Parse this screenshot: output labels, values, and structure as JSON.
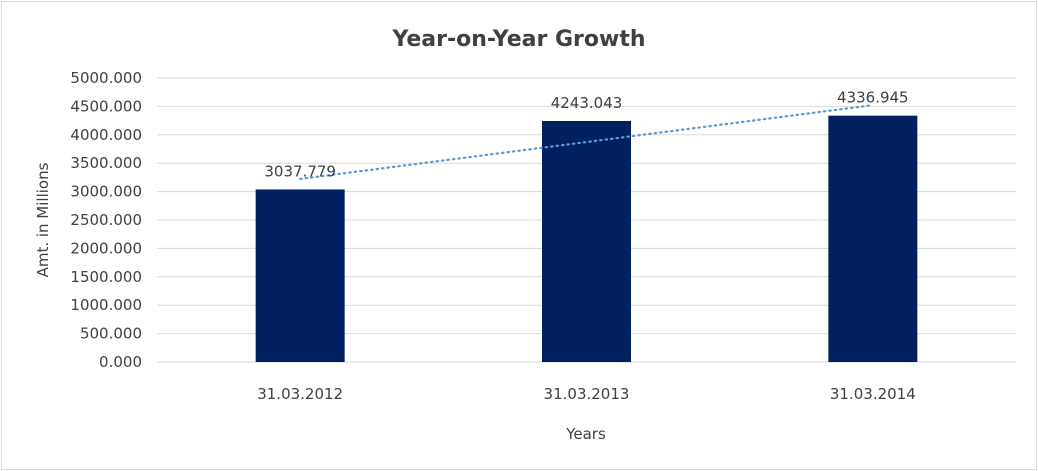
{
  "chart_data": {
    "type": "bar",
    "title": "Year-on-Year Growth",
    "xlabel": "Years",
    "ylabel": "Amt. in Millions",
    "categories": [
      "31.03.2012",
      "31.03.2013",
      "31.03.2014"
    ],
    "values": [
      3037.779,
      4243.043,
      4336.945
    ],
    "data_labels": [
      "3037.779",
      "4243.043",
      "4336.945"
    ],
    "ylim": [
      0,
      5000
    ],
    "yticks": [
      "0.000",
      "500.000",
      "1000.000",
      "1500.000",
      "2000.000",
      "2500.000",
      "3000.000",
      "3500.000",
      "4000.000",
      "4500.000",
      "5000.000"
    ],
    "grid": true,
    "trendline": "linear, dotted",
    "colors": {
      "bar": "#002060",
      "trendline": "#5b9bd5",
      "grid": "#d9d9d9",
      "text": "#404040"
    }
  }
}
